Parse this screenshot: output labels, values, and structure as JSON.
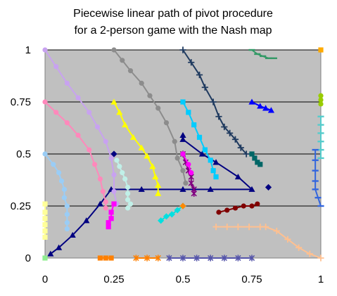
{
  "chart_data": {
    "type": "line",
    "title_lines": [
      "Piecewise linear path of pivot procedure",
      "for a 2-person game with the Nash map"
    ],
    "xlabel": "",
    "ylabel": "",
    "xlim": [
      0,
      1
    ],
    "ylim": [
      0,
      1
    ],
    "grid": "horizontal",
    "x_ticks": [
      {
        "value": 0,
        "label": "0"
      },
      {
        "value": 0.25,
        "label": "0.25"
      },
      {
        "value": 0.5,
        "label": "0.5"
      },
      {
        "value": 0.75,
        "label": "0.75"
      },
      {
        "value": 1,
        "label": "1"
      }
    ],
    "y_ticks": [
      {
        "value": 0,
        "label": "0"
      },
      {
        "value": 0.25,
        "label": "0.25"
      },
      {
        "value": 0.5,
        "label": "0.5"
      },
      {
        "value": 0.75,
        "label": "0.75"
      },
      {
        "value": 1,
        "label": "1"
      }
    ],
    "colors": {
      "plot_bg": "#c0c0c0",
      "gridline": "#000000",
      "text": "#000000"
    },
    "series": [
      {
        "color": "#000080",
        "marker": "triangle",
        "points": [
          [
            0.02,
            0.02
          ],
          [
            0.05,
            0.05
          ],
          [
            0.1,
            0.11
          ],
          [
            0.15,
            0.18
          ],
          [
            0.2,
            0.26
          ],
          [
            0.24,
            0.33
          ],
          [
            0.35,
            0.33
          ],
          [
            0.5,
            0.33
          ],
          [
            0.6,
            0.33
          ],
          [
            0.75,
            0.33
          ],
          [
            0.7,
            0.39
          ],
          [
            0.62,
            0.46
          ],
          [
            0.57,
            0.5
          ],
          [
            0.5,
            0.57
          ],
          [
            0.5,
            0.59
          ]
        ]
      },
      {
        "color": "#000080",
        "marker": "diamond",
        "points": [
          [
            0.81,
            0.34
          ]
        ]
      },
      {
        "color": "#1f3a5f",
        "marker": "plus",
        "points": [
          [
            0.5,
            1.0
          ],
          [
            0.53,
            0.94
          ],
          [
            0.56,
            0.88
          ],
          [
            0.58,
            0.82
          ],
          [
            0.61,
            0.75
          ],
          [
            0.63,
            0.68
          ],
          [
            0.65,
            0.63
          ],
          [
            0.67,
            0.6
          ],
          [
            0.69,
            0.57
          ],
          [
            0.71,
            0.53
          ],
          [
            0.73,
            0.5
          ]
        ]
      },
      {
        "color": "#8c8c8c",
        "marker": "circle",
        "points": [
          [
            0.25,
            1.0
          ],
          [
            0.28,
            0.95
          ],
          [
            0.31,
            0.9
          ],
          [
            0.35,
            0.84
          ],
          [
            0.38,
            0.78
          ],
          [
            0.41,
            0.72
          ],
          [
            0.44,
            0.65
          ],
          [
            0.47,
            0.56
          ],
          [
            0.48,
            0.48
          ],
          [
            0.5,
            0.42
          ],
          [
            0.51,
            0.36
          ]
        ]
      },
      {
        "color": "#c8a2f0",
        "marker": "circle",
        "points": [
          [
            0,
            1
          ],
          [
            0.04,
            0.92
          ],
          [
            0.08,
            0.84
          ],
          [
            0.12,
            0.77
          ],
          [
            0.16,
            0.7
          ],
          [
            0.19,
            0.63
          ],
          [
            0.22,
            0.56
          ],
          [
            0.24,
            0.48
          ],
          [
            0.25,
            0.4
          ],
          [
            0.25,
            0.32
          ],
          [
            0.26,
            0.26
          ]
        ]
      },
      {
        "color": "#ff88bb",
        "marker": "circle",
        "points": [
          [
            0,
            0.75
          ],
          [
            0.04,
            0.7
          ],
          [
            0.08,
            0.65
          ],
          [
            0.12,
            0.59
          ],
          [
            0.16,
            0.52
          ],
          [
            0.18,
            0.45
          ],
          [
            0.2,
            0.38
          ],
          [
            0.21,
            0.32
          ],
          [
            0.22,
            0.27
          ],
          [
            0.22,
            0.24
          ]
        ]
      },
      {
        "color": "#9acdf6",
        "marker": "circle",
        "points": [
          [
            0,
            0.5
          ],
          [
            0.03,
            0.45
          ],
          [
            0.05,
            0.41
          ],
          [
            0.06,
            0.37
          ],
          [
            0.07,
            0.33
          ],
          [
            0.07,
            0.29
          ],
          [
            0.08,
            0.25
          ],
          [
            0.08,
            0.21
          ],
          [
            0.08,
            0.17
          ],
          [
            0.08,
            0.14
          ]
        ]
      },
      {
        "color": "#ffff99",
        "marker": "square",
        "points": [
          [
            0,
            0.26
          ],
          [
            0,
            0.22
          ],
          [
            0,
            0.19
          ],
          [
            0,
            0.16
          ],
          [
            0,
            0.13
          ],
          [
            0,
            0.1
          ]
        ]
      },
      {
        "color": "#ffff00",
        "marker": "triangle",
        "points": [
          [
            0.25,
            0.75
          ],
          [
            0.27,
            0.7
          ],
          [
            0.29,
            0.64
          ],
          [
            0.32,
            0.58
          ],
          [
            0.35,
            0.53
          ],
          [
            0.37,
            0.49
          ],
          [
            0.39,
            0.44
          ],
          [
            0.4,
            0.39
          ],
          [
            0.41,
            0.35
          ],
          [
            0.41,
            0.31
          ]
        ]
      },
      {
        "color": "#000080",
        "marker": "diamond",
        "points": [
          [
            0.25,
            0.5
          ]
        ]
      },
      {
        "color": "#c0f0e8",
        "marker": "circle",
        "points": [
          [
            0.26,
            0.47
          ],
          [
            0.27,
            0.44
          ],
          [
            0.28,
            0.41
          ],
          [
            0.29,
            0.38
          ],
          [
            0.3,
            0.34
          ],
          [
            0.3,
            0.31
          ],
          [
            0.3,
            0.28
          ],
          [
            0.31,
            0.26
          ],
          [
            0.3,
            0.24
          ]
        ]
      },
      {
        "color": "#ff00ff",
        "marker": "square",
        "points": [
          [
            0.25,
            0.26
          ],
          [
            0.24,
            0.22
          ],
          [
            0.24,
            0.19
          ],
          [
            0.23,
            0.17
          ],
          [
            0.23,
            0.15
          ]
        ]
      },
      {
        "color": "#00ccff",
        "marker": "square",
        "points": [
          [
            0.5,
            0.75
          ],
          [
            0.52,
            0.7
          ],
          [
            0.54,
            0.64
          ],
          [
            0.56,
            0.58
          ],
          [
            0.58,
            0.52
          ],
          [
            0.6,
            0.47
          ],
          [
            0.61,
            0.42
          ],
          [
            0.62,
            0.39
          ]
        ]
      },
      {
        "color": "#800080",
        "marker": "asterisk",
        "points": [
          [
            0.5,
            0.5
          ],
          [
            0.51,
            0.46
          ],
          [
            0.52,
            0.42
          ],
          [
            0.53,
            0.39
          ],
          [
            0.53,
            0.36
          ],
          [
            0.54,
            0.33
          ],
          [
            0.54,
            0.31
          ]
        ]
      },
      {
        "color": "#ff00ff",
        "marker": "circle",
        "points": [
          [
            0.5,
            0.5
          ],
          [
            0.52,
            0.45
          ],
          [
            0.53,
            0.41
          ]
        ]
      },
      {
        "color": "#00e0e0",
        "marker": "diamond",
        "points": [
          [
            0.42,
            0.18
          ],
          [
            0.44,
            0.2
          ],
          [
            0.46,
            0.21
          ],
          [
            0.48,
            0.23
          ],
          [
            0.5,
            0.25
          ]
        ]
      },
      {
        "color": "#ff8800",
        "marker": "diamond",
        "points": [
          [
            0.5,
            0.25
          ]
        ]
      },
      {
        "color": "#800000",
        "marker": "circle",
        "points": [
          [
            0.63,
            0.22
          ],
          [
            0.66,
            0.23
          ],
          [
            0.69,
            0.24
          ],
          [
            0.72,
            0.25
          ],
          [
            0.75,
            0.25
          ],
          [
            0.77,
            0.26
          ]
        ]
      },
      {
        "color": "#ffc090",
        "marker": "plus",
        "points": [
          [
            0.62,
            0.15
          ],
          [
            0.66,
            0.15
          ],
          [
            0.7,
            0.15
          ],
          [
            0.74,
            0.15
          ],
          [
            0.78,
            0.15
          ],
          [
            0.8,
            0.15
          ],
          [
            0.84,
            0.13
          ],
          [
            0.88,
            0.09
          ],
          [
            0.92,
            0.05
          ],
          [
            0.96,
            0.02
          ],
          [
            1.0,
            0.0
          ]
        ]
      },
      {
        "color": "#ff8000",
        "marker": "square",
        "points": [
          [
            0.2,
            0.0
          ],
          [
            0.22,
            0.0
          ],
          [
            0.24,
            0.0
          ]
        ]
      },
      {
        "color": "#ff8000",
        "marker": "asterisk",
        "points": [
          [
            0.33,
            0.0
          ],
          [
            0.37,
            0.0
          ],
          [
            0.41,
            0.0
          ]
        ]
      },
      {
        "color": "#5555aa",
        "marker": "asterisk",
        "points": [
          [
            0.45,
            0.0
          ],
          [
            0.5,
            0.0
          ],
          [
            0.55,
            0.0
          ],
          [
            0.6,
            0.0
          ],
          [
            0.65,
            0.0
          ],
          [
            0.7,
            0.0
          ],
          [
            0.75,
            0.0
          ]
        ]
      },
      {
        "color": "#90ee90",
        "marker": "square",
        "points": [
          [
            0.0,
            0.0
          ]
        ]
      },
      {
        "color": "#0000ff",
        "marker": "triangle",
        "points": [
          [
            0.75,
            0.75
          ],
          [
            0.78,
            0.73
          ],
          [
            0.8,
            0.72
          ],
          [
            0.82,
            0.71
          ]
        ]
      },
      {
        "color": "#006666",
        "marker": "square",
        "points": [
          [
            0.75,
            0.5
          ],
          [
            0.76,
            0.48
          ],
          [
            0.77,
            0.46
          ],
          [
            0.78,
            0.45
          ]
        ]
      },
      {
        "color": "#339966",
        "marker": "dash",
        "points": [
          [
            0.75,
            1.0
          ],
          [
            0.77,
            0.98
          ],
          [
            0.79,
            0.97
          ],
          [
            0.81,
            0.96
          ],
          [
            0.83,
            0.96
          ]
        ]
      },
      {
        "color": "#ffaa00",
        "marker": "square",
        "points": [
          [
            1.0,
            1.0
          ]
        ]
      },
      {
        "color": "#99cc00",
        "marker": "circle",
        "points": [
          [
            1.0,
            0.78
          ],
          [
            1.0,
            0.76
          ],
          [
            1.0,
            0.74
          ]
        ]
      },
      {
        "color": "#55cccc",
        "marker": "dash",
        "points": [
          [
            1.0,
            0.68
          ],
          [
            1.0,
            0.64
          ],
          [
            1.0,
            0.6
          ],
          [
            1.0,
            0.56
          ],
          [
            1.0,
            0.52
          ],
          [
            1.0,
            0.48
          ]
        ]
      },
      {
        "color": "#3366dd",
        "marker": "dash",
        "points": [
          [
            0.98,
            0.52
          ],
          [
            0.98,
            0.47
          ],
          [
            0.98,
            0.42
          ],
          [
            0.98,
            0.37
          ],
          [
            0.98,
            0.33
          ],
          [
            0.99,
            0.29
          ],
          [
            1.0,
            0.25
          ]
        ]
      }
    ]
  }
}
